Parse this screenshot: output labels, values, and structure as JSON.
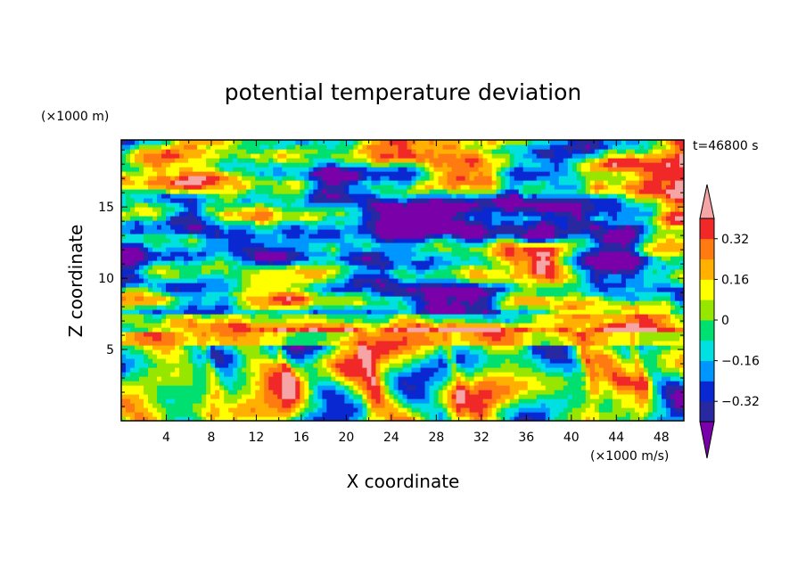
{
  "chart_data": {
    "type": "heatmap",
    "title": "potential temperature deviation",
    "xlabel": "X coordinate",
    "ylabel": "Z coordinate",
    "x_unit": "(×1000 m/s)",
    "y_unit": "(×1000 m)",
    "time_label": "t=46800 s",
    "xlim": [
      0,
      50
    ],
    "ylim": [
      0,
      19.7
    ],
    "x_ticks": [
      4,
      8,
      12,
      16,
      20,
      24,
      28,
      32,
      36,
      40,
      44,
      48
    ],
    "y_ticks": [
      5,
      10,
      15
    ],
    "grid": false,
    "colorbar": {
      "placement": "right",
      "labels": [
        "0.32",
        "0.16",
        "0",
        "−0.16",
        "−0.32"
      ],
      "label_values": [
        0.32,
        0.16,
        0,
        -0.16,
        -0.32
      ],
      "boundaries": [
        -0.4,
        -0.32,
        -0.24,
        -0.16,
        -0.08,
        0,
        0.08,
        0.16,
        0.24,
        0.32,
        0.4
      ],
      "colors": [
        "#7a00aa",
        "#2828a0",
        "#0a28d2",
        "#0096ff",
        "#00e0e0",
        "#00e070",
        "#96e600",
        "#ffff00",
        "#ffb000",
        "#ff7a10",
        "#f02828",
        "#f5a5a5"
      ],
      "extend": "both"
    },
    "field_description": {
      "lower_layer_z_max": 6,
      "lower_layer": "turbulent convective eddies, mixed values from -0.4 to 0.4",
      "upper_layer": "large patches of strongly negative (purple) and strongly positive (pink) values with thin banded transitions"
    }
  }
}
